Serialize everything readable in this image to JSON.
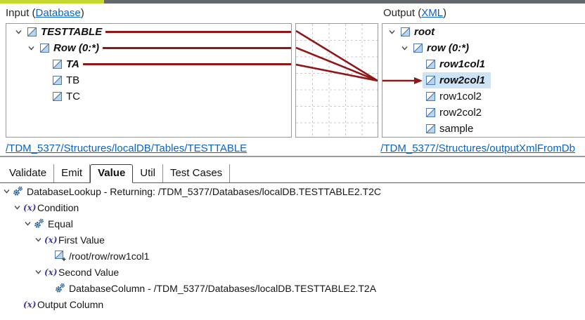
{
  "colors": {
    "accent_green": "#c3d72f",
    "bar_gray": "#64676c",
    "map_line": "#8e1818",
    "selection_blue": "#cde4f7",
    "link_blue": "#0b63c5",
    "box_border": "#9a9a9a",
    "fx_purple": "#474093",
    "gear_blue": "#2c608f"
  },
  "input_panel": {
    "title_prefix": "Input (",
    "title_link": "Database",
    "title_suffix": ")",
    "path_link": "/TDM_5377/Structures/localDB/Tables/TESTTABLE",
    "tree": [
      {
        "label": "TESTTABLE",
        "level": 0,
        "chevron": true,
        "bold": true,
        "line": true
      },
      {
        "label": "Row (0:*)",
        "level": 1,
        "chevron": true,
        "bold": true,
        "line": true
      },
      {
        "label": "TA",
        "level": 2,
        "chevron": false,
        "bold": true,
        "line": true
      },
      {
        "label": "TB",
        "level": 2,
        "chevron": false,
        "bold": false,
        "line": false
      },
      {
        "label": "TC",
        "level": 2,
        "chevron": false,
        "bold": false,
        "line": false
      }
    ]
  },
  "output_panel": {
    "title_prefix": "Output (",
    "title_link": "XML",
    "title_suffix": ")",
    "path_link": "/TDM_5377/Structures/outputXmlFromDb",
    "tree": [
      {
        "label": "root",
        "level": 0,
        "chevron": true,
        "bold": true,
        "selected": false
      },
      {
        "label": "row (0:*)",
        "level": 1,
        "chevron": true,
        "bold": true,
        "selected": false
      },
      {
        "label": "row1col1",
        "level": 2,
        "chevron": false,
        "bold": true,
        "selected": false
      },
      {
        "label": "row2col1",
        "level": 2,
        "chevron": false,
        "bold": true,
        "selected": true
      },
      {
        "label": "row1col2",
        "level": 2,
        "chevron": false,
        "bold": false,
        "selected": false
      },
      {
        "label": "row2col2",
        "level": 2,
        "chevron": false,
        "bold": false,
        "selected": false
      },
      {
        "label": "sample",
        "level": 2,
        "chevron": false,
        "bold": false,
        "selected": false
      }
    ]
  },
  "tabs": {
    "items": [
      "Validate",
      "Emit",
      "Value",
      "Util",
      "Test Cases"
    ],
    "selected": "Value"
  },
  "rule_tree": [
    {
      "label": "DatabaseLookup - Returning: /TDM_5377/Databases/localDB.TESTTABLE2.T2C",
      "level": 0,
      "chevron": true,
      "icon": "gears"
    },
    {
      "label": "Condition",
      "level": 1,
      "chevron": true,
      "icon": "fx"
    },
    {
      "label": "Equal",
      "level": 2,
      "chevron": true,
      "icon": "gears"
    },
    {
      "label": "First Value",
      "level": 3,
      "chevron": true,
      "icon": "fx"
    },
    {
      "label": "/root/row/row1col1",
      "level": 4,
      "chevron": false,
      "icon": "element-plus"
    },
    {
      "label": "Second Value",
      "level": 3,
      "chevron": true,
      "icon": "fx"
    },
    {
      "label": "DatabaseColumn - /TDM_5377/Databases/localDB.TESTTABLE2.T2A",
      "level": 4,
      "chevron": false,
      "icon": "gears"
    },
    {
      "label": "Output Column",
      "level": 1,
      "chevron": false,
      "icon": "fx"
    }
  ],
  "fx_glyph": "(x)"
}
